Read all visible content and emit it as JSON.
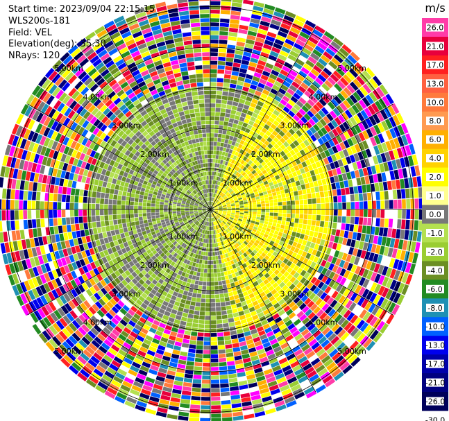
{
  "header": {
    "start_time": "Start time: 2023/09/04 22:15:15",
    "instrument": "WLS200s-181",
    "field": "Field: VEL",
    "elevation": "Elevation(deg): 35.30",
    "nrays": "NRays: 120"
  },
  "chart_data": {
    "type": "heatmap",
    "projection": "polar-ppi",
    "title": "",
    "field": "VEL",
    "units": "m/s",
    "n_rays": 120,
    "range_rings_km": [
      1,
      2,
      3,
      4,
      5
    ],
    "range_ring_labels": [
      "1.00km",
      "2.00km",
      "3.00km",
      "4.00km",
      "5.00km"
    ],
    "spokes_deg": [
      0,
      30,
      60,
      90,
      120,
      150,
      180,
      210,
      240,
      270,
      300,
      330
    ],
    "colorbar": {
      "unit": "m/s",
      "ticks": [
        "26.0",
        "21.0",
        "17.0",
        "13.0",
        "10.0",
        "8.0",
        "6.0",
        "4.0",
        "2.0",
        "1.0",
        "0.0",
        "-1.0",
        "-2.0",
        "-4.0",
        "-6.0",
        "-8.0",
        "-10.0",
        "-13.0",
        "-17.0",
        "-21.0",
        "-26.0",
        "-30.0"
      ],
      "colors": [
        "#ff3ca8",
        "#e8003c",
        "#ff2020",
        "#ff6040",
        "#ff7a3c",
        "#ff9a50",
        "#ffb000",
        "#ffd200",
        "#ffff00",
        "#ffff90",
        "#787878",
        "#b4e050",
        "#9acd32",
        "#6b8e23",
        "#228b22",
        "#1e90b4",
        "#0060ff",
        "#0000ee",
        "#0000aa",
        "#000080",
        "#00005a"
      ]
    },
    "regions": {
      "near_field_km": [
        0,
        3.0
      ],
      "noise_field_km": [
        3.0,
        5.5
      ],
      "positive_sector_deg": [
        20,
        165
      ],
      "positive_sector_velocity": [
        1.0,
        2.0
      ],
      "background_velocity": [
        -2.0,
        -4.0
      ]
    }
  },
  "colors": {
    "ring_line": "#000000",
    "background": "#ffffff"
  }
}
